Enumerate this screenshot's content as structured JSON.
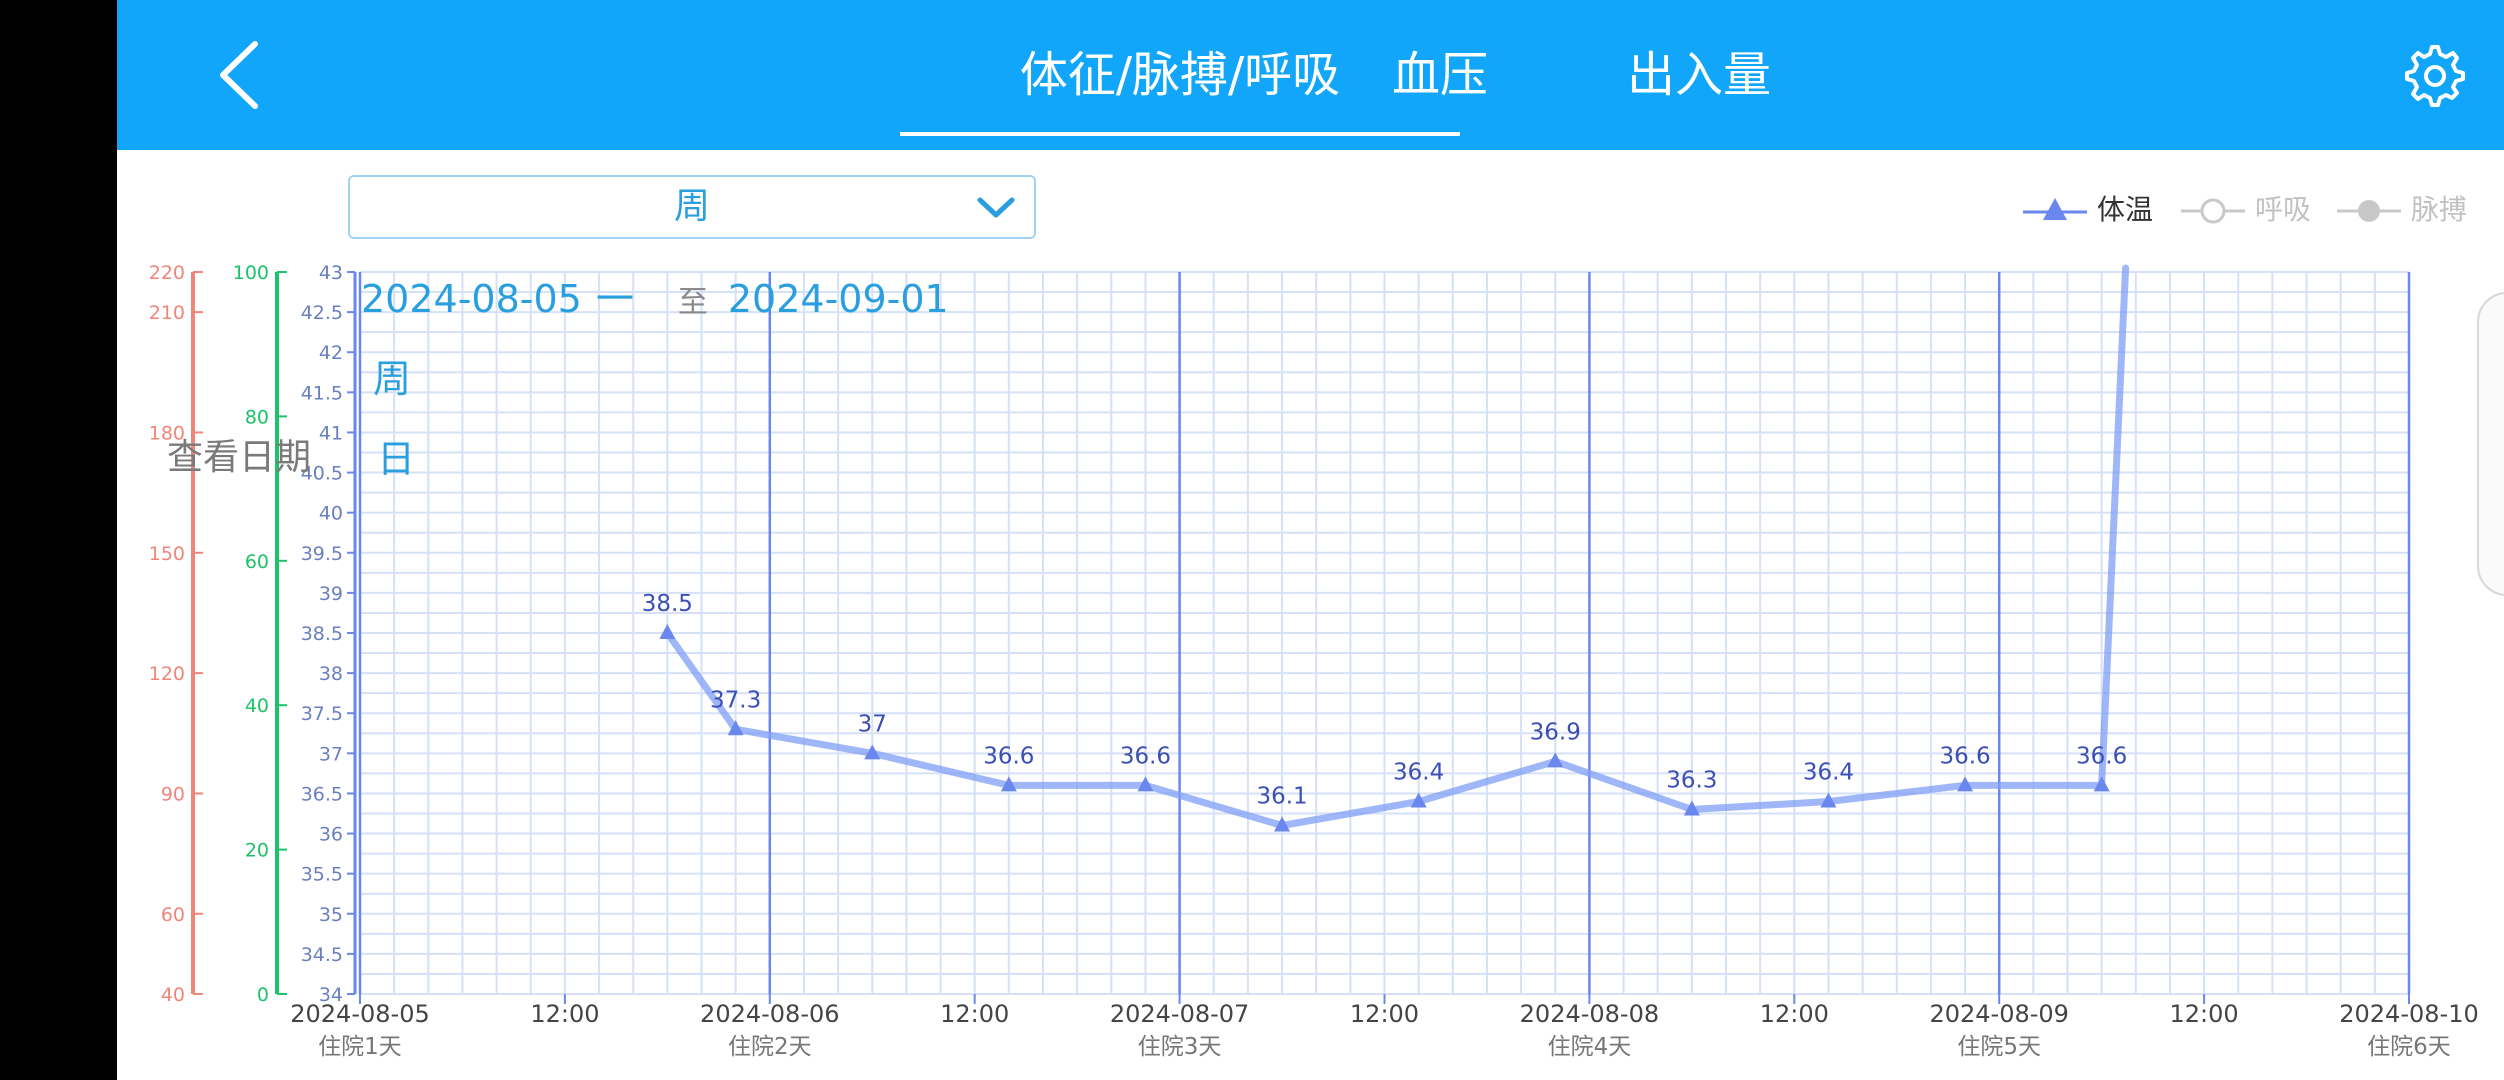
{
  "header": {
    "tabs": [
      {
        "label": "体征/脉搏/呼吸",
        "active": true
      },
      {
        "label": "血压",
        "active": false
      },
      {
        "label": "出入量",
        "active": false
      }
    ],
    "icons": {
      "back": "chevron-left-icon",
      "settings": "gear-icon"
    }
  },
  "colors": {
    "header": "#11a6f9",
    "temperature": "#7f9ff5",
    "temperature_label": "#3b4fb5",
    "pulse_axis": "#f0857a",
    "respiration_axis": "#1cc36b",
    "grid": "#d6e0f7",
    "day_line": "#6a87ee"
  },
  "period_select": {
    "value": "周",
    "icon": "chevron-down-icon"
  },
  "overlay": {
    "start_date": "2024-08-05",
    "dash": "一",
    "to": "至",
    "end_date": "2024-09-01",
    "week": "周",
    "day": "日",
    "view_date": "查看日期"
  },
  "legend": [
    {
      "name": "体温",
      "marker": "triangle",
      "active": true
    },
    {
      "name": "呼吸",
      "marker": "hollow-circle",
      "active": false
    },
    {
      "name": "脉搏",
      "marker": "filled-circle",
      "active": false
    }
  ],
  "chart_data": {
    "type": "line",
    "x_range": [
      "2024-08-05 00:00",
      "2024-08-10 00:00"
    ],
    "x_ticks": [
      {
        "label": "2024-08-05",
        "sub": "住院1天"
      },
      {
        "label": "12:00",
        "sub": ""
      },
      {
        "label": "2024-08-06",
        "sub": "住院2天"
      },
      {
        "label": "12:00",
        "sub": ""
      },
      {
        "label": "2024-08-07",
        "sub": "住院3天"
      },
      {
        "label": "12:00",
        "sub": ""
      },
      {
        "label": "2024-08-08",
        "sub": "住院4天"
      },
      {
        "label": "12:00",
        "sub": ""
      },
      {
        "label": "2024-08-09",
        "sub": "住院5天"
      },
      {
        "label": "12:00",
        "sub": ""
      },
      {
        "label": "2024-08-10",
        "sub": "住院6天"
      }
    ],
    "y_temp": {
      "min": 34,
      "max": 43,
      "ticks": [
        "34",
        "34.5",
        "35",
        "35.5",
        "36",
        "36.5",
        "37",
        "37.5",
        "38",
        "38.5",
        "39",
        "39.5",
        "40",
        "40.5",
        "41",
        "41.5",
        "42",
        "42.5",
        "43"
      ]
    },
    "y_pulse": {
      "min": 40,
      "max": 220,
      "ticks": [
        "40",
        "60",
        "90",
        "120",
        "150",
        "180",
        "210",
        "220"
      ]
    },
    "y_resp": {
      "min": 0,
      "max": 100,
      "ticks": [
        "0",
        "20",
        "40",
        "60",
        "80",
        "100"
      ]
    },
    "series": [
      {
        "name": "体温",
        "points": [
          {
            "x": "2024-08-05 18:00",
            "y": 38.5,
            "label": "38.5"
          },
          {
            "x": "2024-08-05 22:00",
            "y": 37.3,
            "label": "37.3"
          },
          {
            "x": "2024-08-06 06:00",
            "y": 37,
            "label": "37"
          },
          {
            "x": "2024-08-06 14:00",
            "y": 36.6,
            "label": "36.6"
          },
          {
            "x": "2024-08-06 22:00",
            "y": 36.6,
            "label": "36.6"
          },
          {
            "x": "2024-08-07 06:00",
            "y": 36.1,
            "label": "36.1"
          },
          {
            "x": "2024-08-07 14:00",
            "y": 36.4,
            "label": "36.4"
          },
          {
            "x": "2024-08-07 22:00",
            "y": 36.9,
            "label": "36.9"
          },
          {
            "x": "2024-08-08 06:00",
            "y": 36.3,
            "label": "36.3"
          },
          {
            "x": "2024-08-08 14:00",
            "y": 36.4,
            "label": "36.4"
          },
          {
            "x": "2024-08-08 22:00",
            "y": 36.6,
            "label": "36.6"
          },
          {
            "x": "2024-08-09 06:00",
            "y": 36.6,
            "label": "36.6"
          }
        ]
      }
    ]
  }
}
